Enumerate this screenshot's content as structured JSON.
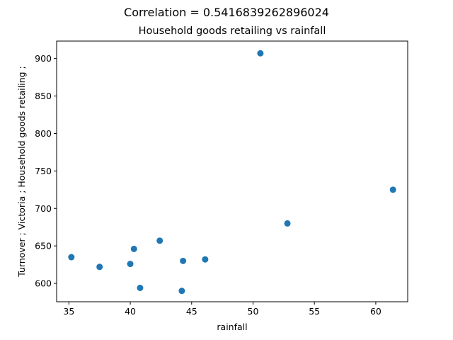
{
  "chart_data": {
    "type": "scatter",
    "suptitle": "Correlation = 0.5416839262896024",
    "title": "Household goods retailing vs rainfall",
    "xlabel": "rainfall",
    "ylabel": "Turnover ;  Victoria ;  Household goods retailing ;",
    "xlim": [
      34.0,
      62.6
    ],
    "ylim": [
      575.5,
      923.3
    ],
    "xticks": [
      35,
      40,
      45,
      50,
      55,
      60
    ],
    "yticks": [
      600,
      650,
      700,
      750,
      800,
      850,
      900
    ],
    "marker_color": "#1f77b4",
    "points": [
      {
        "x": 35.2,
        "y": 635
      },
      {
        "x": 37.5,
        "y": 622
      },
      {
        "x": 40.0,
        "y": 626
      },
      {
        "x": 40.3,
        "y": 646
      },
      {
        "x": 40.8,
        "y": 594
      },
      {
        "x": 42.4,
        "y": 657
      },
      {
        "x": 44.2,
        "y": 590
      },
      {
        "x": 44.3,
        "y": 630
      },
      {
        "x": 46.1,
        "y": 632
      },
      {
        "x": 50.6,
        "y": 907
      },
      {
        "x": 52.8,
        "y": 680
      },
      {
        "x": 61.4,
        "y": 725
      }
    ]
  }
}
